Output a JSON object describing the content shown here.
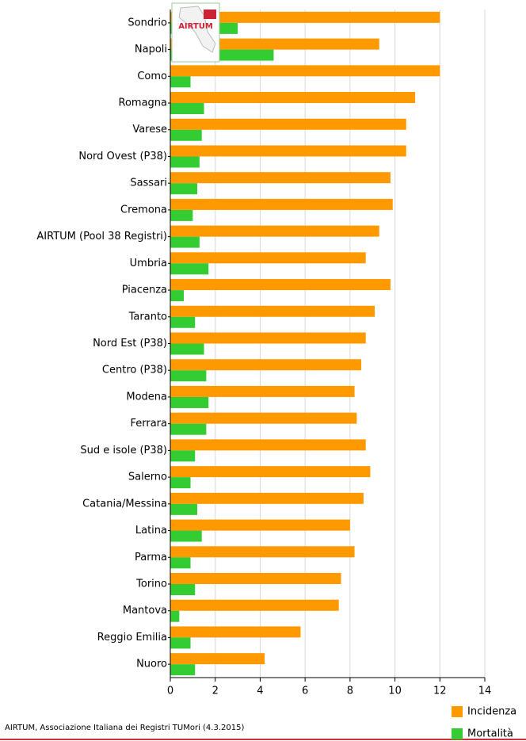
{
  "chart_data": {
    "type": "hbar",
    "categories": [
      "Sondrio",
      "Napoli",
      "Como",
      "Romagna",
      "Varese",
      "Nord Ovest (P38)",
      "Sassari",
      "Cremona",
      "AIRTUM (Pool 38 Registri)",
      "Umbria",
      "Piacenza",
      "Taranto",
      "Nord Est (P38)",
      "Centro (P38)",
      "Modena",
      "Ferrara",
      "Sud e isole (P38)",
      "Salerno",
      "Catania/Messina",
      "Latina",
      "Parma",
      "Torino",
      "Mantova",
      "Reggio Emilia",
      "Nuoro"
    ],
    "series": [
      {
        "name": "Incidenza",
        "color": "#ff9900",
        "values": [
          12.0,
          9.3,
          12.0,
          10.9,
          10.5,
          10.5,
          9.8,
          9.9,
          9.3,
          8.7,
          9.8,
          9.1,
          8.7,
          8.5,
          8.2,
          8.3,
          8.7,
          8.9,
          8.6,
          8.0,
          8.2,
          7.6,
          7.5,
          5.8,
          4.2
        ]
      },
      {
        "name": "Mortalità",
        "color": "#33cc33",
        "values": [
          3.0,
          4.6,
          0.9,
          1.5,
          1.4,
          1.3,
          1.2,
          1.0,
          1.3,
          1.7,
          0.6,
          1.1,
          1.5,
          1.6,
          1.7,
          1.6,
          1.1,
          0.9,
          1.2,
          1.4,
          0.9,
          1.1,
          0.4,
          0.9,
          1.1
        ]
      }
    ],
    "xlim": [
      0,
      14
    ],
    "xticks": [
      0,
      2,
      4,
      6,
      8,
      10,
      12,
      14
    ],
    "grid": true,
    "footer": "AIRTUM, Associazione Italiana dei Registri TUMori (4.3.2015)",
    "logo_text": "AIRTUM"
  }
}
